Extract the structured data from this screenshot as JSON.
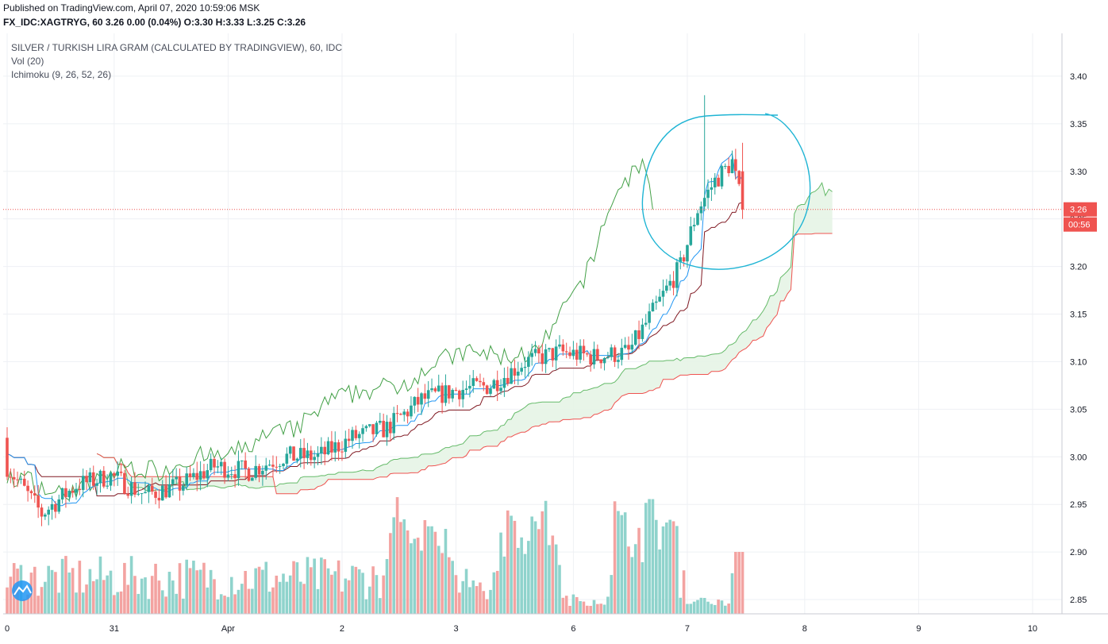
{
  "header": {
    "published": "Published on TradingView.com, April 07, 2020 10:59:06 MSK",
    "symbol_line": "FX_IDC:XAGTRYG, 60 3.26 0.00 (0.04%) O:3.30 H:3.33 L:3.25 C:3.26"
  },
  "legend": {
    "title": "SILVER / TURKISH LIRA GRAM (CALCULATED BY TRADINGVIEW), 60, IDC",
    "vol": "Vol (20)",
    "ichimoku": "Ichimoku (9, 26, 52, 26)"
  },
  "price_axis": {
    "ticks": [
      "3.40",
      "3.35",
      "3.30",
      "3.25",
      "3.20",
      "3.15",
      "3.10",
      "3.05",
      "3.00",
      "2.95",
      "2.90",
      "2.85"
    ],
    "last_price": "3.26",
    "countdown": "00:56"
  },
  "time_axis": {
    "ticks": [
      "0",
      "31",
      "Apr",
      "2",
      "3",
      "6",
      "7",
      "8",
      "9",
      "10"
    ]
  },
  "colors": {
    "up": "#26a69a",
    "down": "#ef5350",
    "vol_up": "#8fd3cc",
    "vol_down": "#f3a3a1",
    "tenkan": "#2196f3",
    "kijun": "#801922",
    "chikou": "#43a047",
    "span_a": "#66bb6a",
    "span_b": "#ef5350",
    "cloud": "#e6f4e6",
    "price_line": "#ef5350",
    "annotation": "#1eb4d4"
  },
  "chart_data": {
    "type": "candlestick",
    "ylim": [
      2.835,
      3.445
    ],
    "y_ticks": [
      3.4,
      3.35,
      3.3,
      3.25,
      3.2,
      3.15,
      3.1,
      3.05,
      3.0,
      2.95,
      2.9,
      2.85
    ],
    "last_price": 3.26,
    "ohlc": {
      "open": 3.3,
      "high": 3.33,
      "low": 3.25,
      "close": 3.26
    },
    "change": "0.00 (0.04%)",
    "series": [
      {
        "name": "Price",
        "anchors": [
          [
            0,
            2.99
          ],
          [
            10,
            2.94
          ],
          [
            20,
            2.97
          ],
          [
            30,
            2.98
          ],
          [
            40,
            2.96
          ],
          [
            50,
            2.97
          ],
          [
            60,
            2.99
          ],
          [
            70,
            2.985
          ],
          [
            80,
            3.0
          ],
          [
            90,
            3.0
          ],
          [
            100,
            3.02
          ],
          [
            110,
            3.03
          ],
          [
            120,
            3.06
          ],
          [
            130,
            3.07
          ],
          [
            140,
            3.075
          ],
          [
            150,
            3.1
          ],
          [
            160,
            3.11
          ],
          [
            170,
            3.105
          ],
          [
            180,
            3.11
          ],
          [
            185,
            3.14
          ],
          [
            190,
            3.17
          ],
          [
            195,
            3.2
          ],
          [
            200,
            3.26
          ],
          [
            205,
            3.29
          ],
          [
            210,
            3.31
          ],
          [
            213,
            3.26
          ]
        ]
      },
      {
        "name": "Vol (20)"
      },
      {
        "name": "Ichimoku (9, 26, 52, 26)"
      }
    ]
  }
}
